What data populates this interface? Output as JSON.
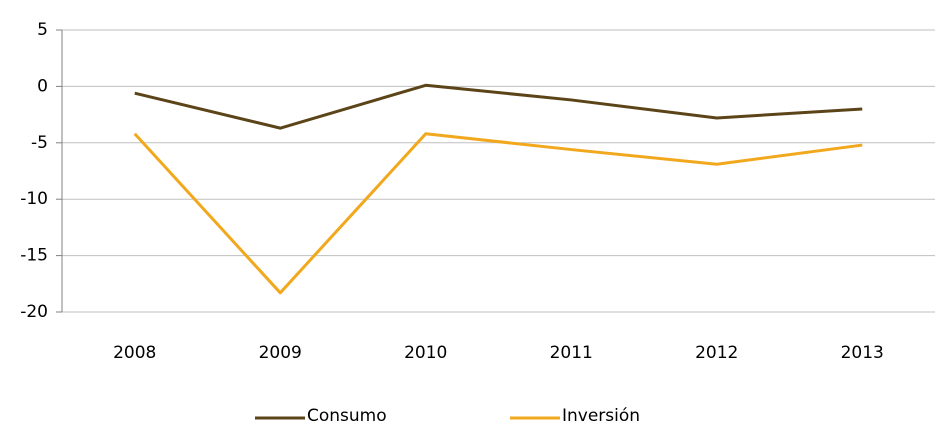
{
  "chart_data": {
    "type": "line",
    "categories": [
      "2008",
      "2009",
      "2010",
      "2011",
      "2012",
      "2013"
    ],
    "series": [
      {
        "name": "Consumo",
        "color": "#5c4419",
        "values": [
          -0.6,
          -3.7,
          0.1,
          -1.2,
          -2.8,
          -2.0
        ]
      },
      {
        "name": "Inversión",
        "color": "#f2a81d",
        "values": [
          -4.2,
          -18.3,
          -4.2,
          -5.6,
          -6.9,
          -5.2
        ]
      }
    ],
    "ylim": [
      -20,
      5
    ],
    "yticks": [
      -20,
      -15,
      -10,
      -5,
      0,
      5
    ],
    "grid": true,
    "legend": "bottom"
  }
}
